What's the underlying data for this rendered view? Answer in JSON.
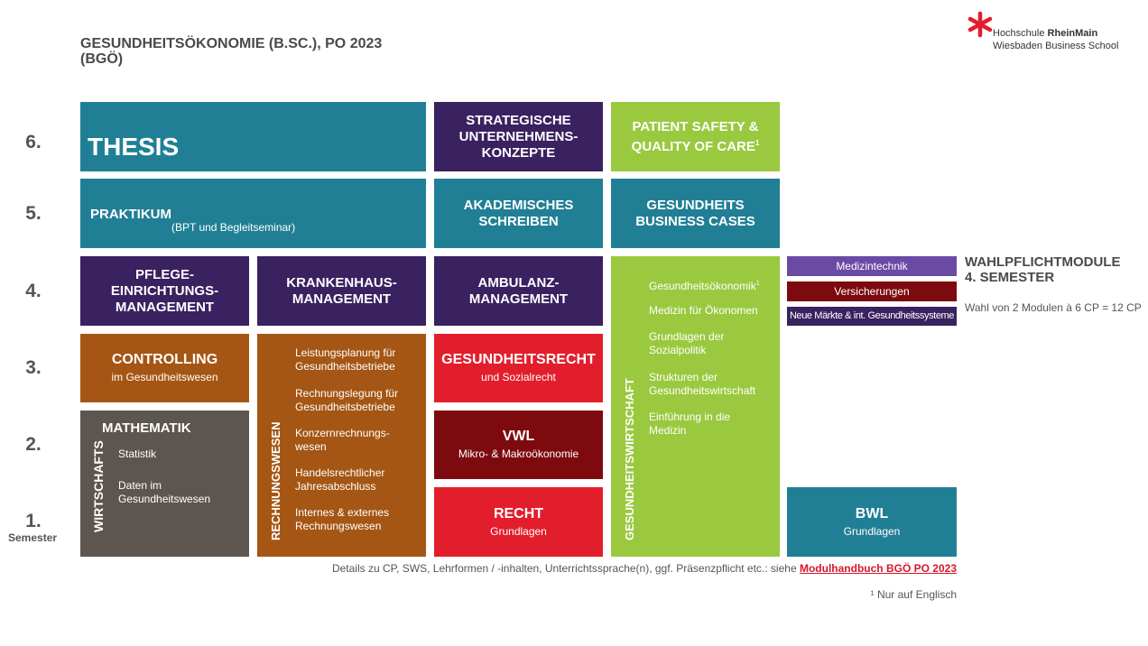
{
  "header": {
    "title_line1": "GESUNDHEITSÖKONOMIE (B.SC.), PO 2023",
    "title_line2": "(BGÖ)",
    "logo_line1_regular": "Hochschule ",
    "logo_line1_bold": "RheinMain",
    "logo_line2": "Wiesbaden Business School",
    "logo_color": "#e31e2c"
  },
  "semesters": {
    "s6": "6.",
    "s5": "5.",
    "s4": "4.",
    "s3": "3.",
    "s2": "2.",
    "s1": "1.",
    "label": "Semester"
  },
  "modules": {
    "thesis": "THESIS",
    "strategische": "STRATEGISCHE\nUNTERNEHMENS-\nKONZEPTE",
    "patient": "PATIENT SAFETY &\nQUALITY OF CARE",
    "patient_sup": "1",
    "praktikum": "PRAKTIKUM",
    "praktikum_sub": "(BPT und Begleitseminar)",
    "akademisches": "AKADEMISCHES\nSCHREIBEN",
    "business_cases": "GESUNDHEITS\nBUSINESS CASES",
    "pflege": "PFLEGE-\nEINRICHTUNGS-\nMANAGEMENT",
    "krankenhaus": "KRANKENHAUS-\nMANAGEMENT",
    "ambulanz": "AMBULANZ-\nMANAGEMENT",
    "controlling": "CONTROLLING",
    "controlling_sub": "im Gesundheitswesen",
    "gesundheitsrecht": "GESUNDHEITSRECHT",
    "gesundheitsrecht_sub": "und Sozialrecht",
    "vwl": "VWL",
    "vwl_sub": "Mikro- & Makroökonomie",
    "recht": "RECHT",
    "recht_sub": "Grundlagen",
    "bwl": "BWL",
    "bwl_sub": "Grundlagen",
    "wirtschafts": "WIRTSCHAFTS",
    "mathematik": "MATHEMATIK",
    "statistik": "Statistik",
    "daten": "Daten im\nGesundheitswesen",
    "rechnungswesen": "RECHNUNGSWESEN",
    "rw_items": [
      "Leistungsplanung für\nGesundheitsbetriebe",
      "Rechnungslegung für\nGesundheitsbetriebe",
      "Konzernrechnungs-\nwesen",
      "Handelsrechtlicher\nJahresabschluss",
      "Internes & externes\nRechnungswesen"
    ],
    "gesundheitswirtschaft": "GESUNDHEITSWIRTSCHAFT",
    "gw_item1": "Gesundheitsökonomik",
    "gw_item1_sup": "1",
    "gw_items": [
      "Medizin für Ökonomen",
      "Grundlagen der\nSozialpolitik",
      "Strukturen der\nGesundheitswirtschaft",
      "Einführung in die\nMedizin"
    ]
  },
  "wahlpflicht": {
    "title": "WAHLPFLICHTMODULE\n4. SEMESTER",
    "note": "Wahl von 2 Modulen à 6 CP = 12 CP",
    "options": [
      "Medizintechnik",
      "Versicherungen",
      "Neue Märkte & int. Gesundheitssysteme"
    ]
  },
  "footer": {
    "details": "Details zu CP, SWS, Lehrformen / -inhalten, Unterrichtssprache(n), ggf. Präsenzpflicht etc.: siehe ",
    "link": "Modulhandbuch BGÖ PO 2023",
    "footnote": "¹ Nur auf Englisch"
  },
  "colors": {
    "teal": "#217f95",
    "purple": "#3a2160",
    "green": "#9ac93f",
    "brown": "#a55614",
    "red": "#e31e2c",
    "darkred": "#7d0a0f",
    "gray": "#5d5650",
    "violet": "#6a4aa5"
  }
}
